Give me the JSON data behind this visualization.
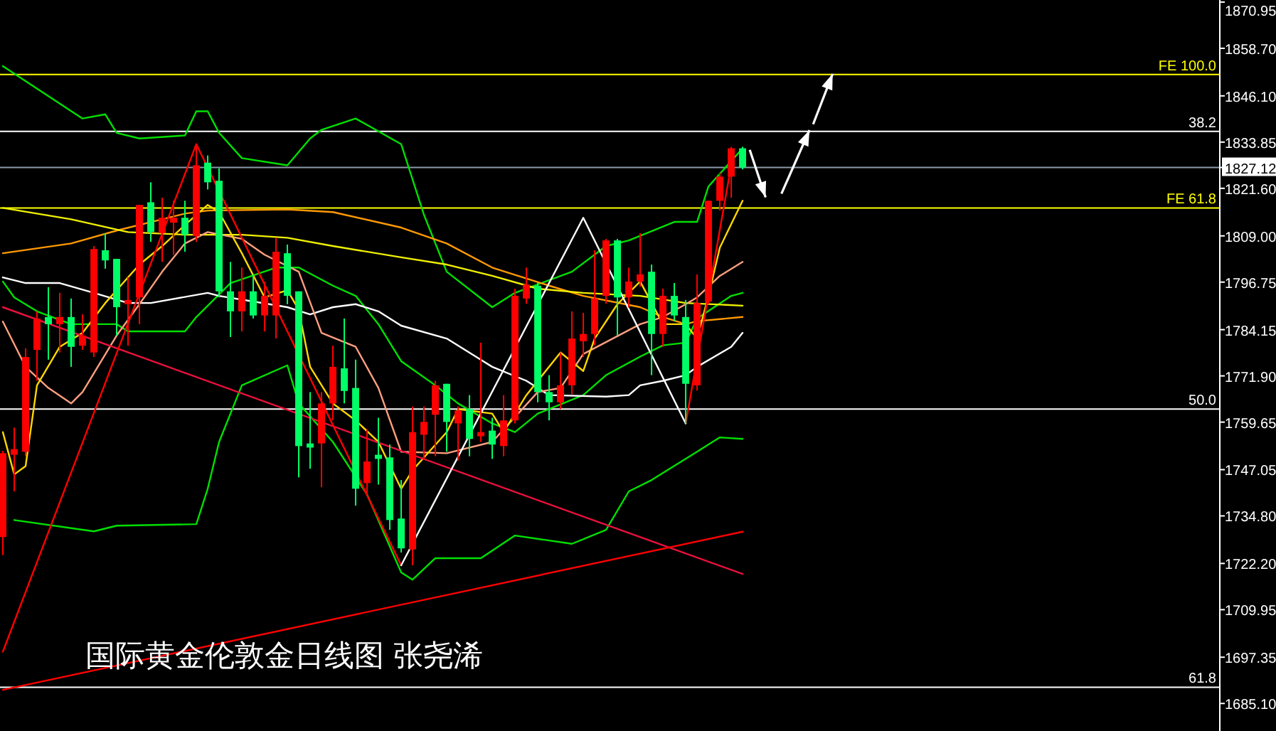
{
  "chart_data": {
    "type": "candlestick",
    "title": "国际黄金伦敦金日线图 张尧浠",
    "categories": [
      null,
      null,
      null,
      null,
      null,
      null,
      null,
      null,
      null,
      null,
      null,
      null,
      null,
      null,
      null,
      null,
      null,
      null,
      null,
      null,
      null,
      null,
      null,
      null,
      null,
      null,
      null,
      null,
      null,
      null,
      null,
      null,
      null,
      null,
      null,
      null,
      null,
      null,
      null,
      null,
      null,
      null,
      null,
      null,
      null,
      null,
      null,
      null,
      null,
      null,
      null,
      null,
      null,
      null,
      null,
      null,
      null,
      null,
      null,
      null,
      null,
      null,
      null,
      null,
      null,
      null
    ],
    "ohlc": [
      [
        1729.2,
        1752.0,
        1724.4,
        1751.4
      ],
      [
        1751.0,
        1758.2,
        1741.3,
        1752.5
      ],
      [
        1751.8,
        1779.2,
        1750.6,
        1776.9
      ],
      [
        1778.8,
        1789.0,
        1770.6,
        1787.1
      ],
      [
        1787.5,
        1795.4,
        1776.2,
        1785.6
      ],
      [
        1785.6,
        1793.9,
        1778.1,
        1787.5
      ],
      [
        1787.5,
        1792.4,
        1774.3,
        1779.6
      ],
      [
        1779.9,
        1788.2,
        1778.8,
        1782.6
      ],
      [
        1778.1,
        1806.3,
        1776.9,
        1805.5
      ],
      [
        1805.2,
        1809.7,
        1800.3,
        1802.5
      ],
      [
        1802.9,
        1802.9,
        1782.6,
        1790.1
      ],
      [
        1790.9,
        1798.0,
        1779.9,
        1792.0
      ],
      [
        1792.7,
        1817.2,
        1785.6,
        1817.2
      ],
      [
        1817.9,
        1823.2,
        1807.4,
        1810.0
      ],
      [
        1809.7,
        1819.1,
        1802.1,
        1813.8
      ],
      [
        1812.5,
        1818.3,
        1804.0,
        1813.8
      ],
      [
        1813.8,
        1818.3,
        1804.8,
        1809.3
      ],
      [
        1808.9,
        1833.3,
        1807.4,
        1827.7
      ],
      [
        1828.4,
        1830.3,
        1821.3,
        1823.2
      ],
      [
        1823.6,
        1826.9,
        1792.7,
        1794.3
      ],
      [
        1794.3,
        1802.1,
        1782.2,
        1789.0
      ],
      [
        1789.0,
        1800.6,
        1783.7,
        1794.3
      ],
      [
        1794.3,
        1798.8,
        1787.1,
        1787.9
      ],
      [
        1787.9,
        1796.9,
        1783.7,
        1793.1
      ],
      [
        1787.9,
        1808.5,
        1781.8,
        1804.8
      ],
      [
        1804.4,
        1806.7,
        1790.9,
        1793.1
      ],
      [
        1794.3,
        1794.3,
        1745.0,
        1753.3
      ],
      [
        1754.0,
        1767.6,
        1747.3,
        1752.9
      ],
      [
        1754.0,
        1767.6,
        1742.4,
        1764.6
      ],
      [
        1764.6,
        1779.9,
        1760.1,
        1774.3
      ],
      [
        1773.9,
        1787.1,
        1764.6,
        1767.9
      ],
      [
        1768.7,
        1776.2,
        1737.5,
        1742.0
      ],
      [
        1743.5,
        1757.8,
        1740.5,
        1749.2
      ],
      [
        1751.0,
        1760.8,
        1743.1,
        1749.9
      ],
      [
        1750.3,
        1753.7,
        1731.1,
        1733.7
      ],
      [
        1734.1,
        1744.3,
        1725.1,
        1726.2
      ],
      [
        1725.9,
        1763.8,
        1721.7,
        1757.0
      ],
      [
        1756.3,
        1763.8,
        1749.9,
        1759.7
      ],
      [
        1761.6,
        1770.6,
        1750.6,
        1769.4
      ],
      [
        1769.8,
        1769.8,
        1751.8,
        1759.7
      ],
      [
        1759.3,
        1763.8,
        1749.5,
        1762.7
      ],
      [
        1763.1,
        1766.8,
        1750.6,
        1755.2
      ],
      [
        1755.9,
        1780.7,
        1754.4,
        1757.0
      ],
      [
        1757.4,
        1760.8,
        1749.9,
        1753.7
      ],
      [
        1753.3,
        1766.8,
        1750.6,
        1760.1
      ],
      [
        1760.1,
        1795.0,
        1759.3,
        1793.1
      ],
      [
        1792.4,
        1800.6,
        1791.0,
        1796.1
      ],
      [
        1795.8,
        1796.5,
        1764.9,
        1767.6
      ],
      [
        1767.6,
        1772.1,
        1760.1,
        1764.9
      ],
      [
        1764.9,
        1778.1,
        1763.1,
        1769.4
      ],
      [
        1769.4,
        1789.0,
        1767.0,
        1781.8
      ],
      [
        1781.1,
        1788.6,
        1776.9,
        1783.0
      ],
      [
        1783.0,
        1805.2,
        1780.0,
        1792.4
      ],
      [
        1793.1,
        1808.2,
        1791.0,
        1807.8
      ],
      [
        1807.8,
        1808.2,
        1782.6,
        1792.7
      ],
      [
        1792.7,
        1800.6,
        1790.0,
        1796.9
      ],
      [
        1796.9,
        1809.7,
        1795.5,
        1798.8
      ],
      [
        1799.5,
        1801.4,
        1772.1,
        1783.0
      ],
      [
        1783.0,
        1795.0,
        1779.6,
        1793.1
      ],
      [
        1793.1,
        1796.5,
        1786.4,
        1787.9
      ],
      [
        1787.5,
        1792.0,
        1759.3,
        1769.8
      ],
      [
        1769.4,
        1798.8,
        1768.0,
        1791.2
      ],
      [
        1791.6,
        1818.3,
        1790.9,
        1818.3
      ],
      [
        1818.3,
        1825.8,
        1815.7,
        1824.7
      ],
      [
        1824.7,
        1832.6,
        1819.1,
        1832.2
      ],
      [
        1832.2,
        1832.6,
        1826.6,
        1827.1
      ]
    ],
    "colors": [
      "#ff0000",
      "#ff0000",
      "#ff0000",
      "#ff0000",
      "#00ff66",
      "#ff0000",
      "#00ff66",
      "#ff0000",
      "#ff0000",
      "#00ff66",
      "#00ff66",
      "#ff0000",
      "#ff0000",
      "#00ff66",
      "#ff0000",
      "#ff0000",
      "#00ff66",
      "#ff0000",
      "#00ff66",
      "#00ff66",
      "#00ff66",
      "#ff0000",
      "#00ff66",
      "#ff0000",
      "#ff0000",
      "#00ff66",
      "#00ff66",
      "#00ff66",
      "#ff0000",
      "#ff0000",
      "#00ff66",
      "#00ff66",
      "#ff0000",
      "#00ff66",
      "#00ff66",
      "#00ff66",
      "#ff0000",
      "#ff0000",
      "#ff0000",
      "#00ff66",
      "#ff0000",
      "#00ff66",
      "#ff0000",
      "#00ff66",
      "#ff0000",
      "#ff0000",
      "#ff0000",
      "#00ff66",
      "#00ff66",
      "#ff0000",
      "#ff0000",
      "#ff0000",
      "#ff0000",
      "#ff0000",
      "#00ff66",
      "#ff0000",
      "#ff0000",
      "#00ff66",
      "#ff0000",
      "#00ff66",
      "#00ff66",
      "#ff0000",
      "#ff0000",
      "#ff0000",
      "#ff0000",
      "#00ff66"
    ],
    "series": [
      {
        "type": "line",
        "color": "#00e000",
        "values": [
          1854.0,
          null,
          null,
          null,
          null,
          null,
          null,
          1840.1,
          null,
          1841.2,
          1836.3,
          null,
          1834.8,
          null,
          null,
          null,
          1835.6,
          1842.0,
          1842.0,
          1836.3,
          null,
          1829.6,
          null,
          null,
          null,
          1827.7,
          null,
          1834.8,
          1837.1,
          null,
          null,
          1840.1,
          null,
          null,
          null,
          1833.3,
          null,
          1814.6,
          null,
          1799.5,
          null,
          null,
          null,
          1790.1,
          null,
          1793.9,
          null,
          null,
          null,
          null,
          1799.5,
          null,
          null,
          1806.3,
          null,
          1807.8,
          null,
          null,
          null,
          1812.7,
          null,
          1812.7,
          1822.1,
          null,
          null,
          1832.2
        ]
      },
      {
        "type": "line",
        "color": "#00e000",
        "values": [
          1796.9,
          1792.7,
          null,
          1789.0,
          null,
          null,
          1785.6,
          null,
          null,
          null,
          1785.6,
          1783.7,
          null,
          null,
          null,
          null,
          1783.7,
          1787.5,
          null,
          null,
          1796.5,
          null,
          null,
          null,
          1800.6,
          null,
          1800.6,
          null,
          null,
          1795.8,
          null,
          1793.1,
          null,
          1785.6,
          null,
          1775.8,
          null,
          null,
          1769.4,
          null,
          1764.6,
          null,
          null,
          1759.3,
          null,
          1757.0,
          null,
          1761.9,
          null,
          null,
          null,
          1766.8,
          null,
          1772.1,
          null,
          null,
          1777.0,
          null,
          1780.0,
          null,
          1780.7,
          1787.1,
          null,
          null,
          1793.1,
          1793.9
        ]
      },
      {
        "type": "line",
        "color": "#00e000",
        "values": [
          null,
          1733.7,
          null,
          null,
          null,
          null,
          null,
          null,
          1730.7,
          null,
          1732.2,
          null,
          null,
          null,
          null,
          null,
          null,
          1732.6,
          1742.0,
          1754.4,
          null,
          1769.4,
          null,
          null,
          null,
          1774.7,
          1764.6,
          null,
          null,
          1754.4,
          null,
          null,
          1740.5,
          null,
          null,
          1719.8,
          1717.9,
          null,
          1723.6,
          null,
          null,
          null,
          1723.6,
          null,
          null,
          1729.6,
          null,
          null,
          null,
          null,
          1727.4,
          null,
          null,
          1731.1,
          null,
          1741.3,
          null,
          1744.3,
          null,
          null,
          null,
          1751.8,
          null,
          1755.6,
          null,
          1755.2
        ]
      },
      {
        "type": "line",
        "color": "#ffffff",
        "values": [
          1798.0,
          null,
          1796.5,
          null,
          null,
          1796.5,
          null,
          null,
          1793.9,
          null,
          null,
          1791.2,
          null,
          1791.2,
          null,
          null,
          null,
          null,
          1793.9,
          1793.1,
          null,
          null,
          1791.6,
          null,
          null,
          1790.1,
          null,
          1788.2,
          null,
          1790.1,
          null,
          1790.9,
          null,
          1789.0,
          null,
          1785.2,
          null,
          null,
          null,
          1781.8,
          null,
          null,
          null,
          1774.3,
          null,
          null,
          1770.6,
          null,
          1766.8,
          null,
          null,
          null,
          null,
          1766.4,
          null,
          1766.8,
          1769.4,
          null,
          1770.6,
          null,
          1772.1,
          1774.3,
          null,
          null,
          1779.6,
          1783.3
        ]
      },
      {
        "type": "line",
        "color": "#ff9900",
        "values": [
          1804.4,
          null,
          null,
          null,
          null,
          null,
          1807.0,
          null,
          null,
          null,
          1810.4,
          null,
          null,
          null,
          null,
          null,
          1814.9,
          null,
          1815.7,
          null,
          null,
          null,
          null,
          null,
          null,
          1816.0,
          null,
          null,
          null,
          1815.3,
          null,
          null,
          null,
          null,
          null,
          1811.2,
          null,
          null,
          null,
          1807.0,
          null,
          null,
          null,
          1800.6,
          null,
          null,
          null,
          null,
          1795.8,
          null,
          null,
          1793.1,
          null,
          null,
          null,
          null,
          1790.1,
          null,
          1787.5,
          null,
          1785.6,
          1786.4,
          null,
          null,
          null,
          1787.5
        ]
      },
      {
        "type": "line",
        "color": "#f0f000",
        "values": [
          1816.4,
          null,
          null,
          null,
          null,
          null,
          1813.4,
          null,
          null,
          null,
          null,
          1810.0,
          null,
          null,
          null,
          null,
          1809.3,
          null,
          null,
          null,
          null,
          1809.3,
          null,
          null,
          null,
          1808.5,
          null,
          null,
          null,
          1806.3,
          null,
          null,
          null,
          null,
          null,
          1803.3,
          null,
          null,
          null,
          1801.4,
          null,
          null,
          null,
          1798.4,
          null,
          null,
          null,
          1795.0,
          null,
          null,
          null,
          1793.9,
          null,
          null,
          null,
          null,
          1793.1,
          null,
          null,
          null,
          1791.2,
          null,
          null,
          null,
          null,
          1790.5
        ]
      },
      {
        "type": "line",
        "color": "#ff9f7f",
        "values": [
          1786.3,
          null,
          1774.3,
          null,
          1768.7,
          null,
          1764.6,
          1767.6,
          null,
          null,
          1782.6,
          null,
          1790.9,
          null,
          1799.5,
          null,
          1807.0,
          null,
          1810.0,
          null,
          null,
          1808.2,
          null,
          1804.0,
          null,
          null,
          1799.5,
          null,
          1783.3,
          null,
          null,
          1779.6,
          null,
          1768.7,
          null,
          1751.8,
          null,
          null,
          null,
          1751.4,
          null,
          null,
          null,
          1754.4,
          null,
          null,
          null,
          1767.6,
          null,
          1768.7,
          null,
          1777.7,
          null,
          null,
          null,
          null,
          1785.6,
          null,
          1787.5,
          null,
          1790.9,
          1792.7,
          null,
          1798.4,
          null,
          1802.1
        ]
      },
      {
        "type": "line",
        "color": "#ffd700",
        "values": [
          1757.0,
          1745.8,
          1748.0,
          1769.4,
          null,
          1779.6,
          null,
          1783.3,
          null,
          1791.2,
          null,
          null,
          1801.4,
          null,
          1806.3,
          null,
          1811.9,
          null,
          1817.2,
          1815.3,
          null,
          1804.4,
          null,
          1792.7,
          null,
          1794.6,
          1789.4,
          1774.3,
          null,
          1764.6,
          null,
          1760.1,
          null,
          1754.4,
          null,
          1742.0,
          1746.9,
          null,
          null,
          1757.0,
          1763.1,
          null,
          null,
          1761.9,
          1757.0,
          null,
          1766.8,
          null,
          null,
          1778.1,
          null,
          1773.2,
          1781.8,
          null,
          1790.9,
          null,
          1796.9,
          null,
          1785.6,
          null,
          1785.6,
          1781.8,
          1793.1,
          1805.9,
          null,
          1818.3
        ]
      },
      {
        "type": "line",
        "color": "#e8103c",
        "values": [
          1790.1,
          null,
          null,
          null,
          null,
          null,
          null,
          null,
          null,
          null,
          null,
          null,
          null,
          null,
          null,
          null,
          null,
          null,
          null,
          null,
          null,
          null,
          null,
          null,
          null,
          null,
          null,
          null,
          null,
          null,
          null,
          null,
          null,
          null,
          null,
          null,
          null,
          null,
          null,
          null,
          null,
          null,
          null,
          null,
          null,
          null,
          null,
          null,
          null,
          null,
          null,
          null,
          null,
          null,
          null,
          null,
          null,
          null,
          null,
          null,
          null,
          null,
          null,
          null,
          null,
          1719.4
        ]
      },
      {
        "type": "line",
        "color": "#ff0000",
        "values": [
          1688.7,
          null,
          null,
          null,
          null,
          null,
          null,
          null,
          null,
          null,
          null,
          null,
          null,
          null,
          null,
          null,
          null,
          null,
          null,
          null,
          null,
          null,
          null,
          null,
          null,
          null,
          null,
          null,
          null,
          null,
          null,
          null,
          null,
          null,
          null,
          null,
          null,
          null,
          null,
          null,
          null,
          null,
          null,
          null,
          null,
          null,
          null,
          null,
          null,
          null,
          null,
          null,
          null,
          null,
          null,
          null,
          null,
          null,
          null,
          null,
          null,
          null,
          null,
          null,
          null,
          1730.6
        ]
      },
      {
        "type": "line",
        "color": "#ff0000",
        "values": [
          1698.8,
          null,
          null,
          null,
          null,
          null,
          null,
          null,
          null,
          null,
          null,
          null,
          null,
          null,
          null,
          null,
          null,
          1833.3,
          null,
          null,
          null,
          null,
          null,
          null,
          null,
          null,
          null,
          null,
          null,
          null,
          null,
          null,
          null,
          null,
          null,
          1721.7,
          null,
          null,
          null,
          null,
          null,
          null,
          null,
          null,
          null,
          null,
          null,
          null,
          null,
          null,
          null,
          null,
          null,
          null,
          null,
          null,
          null,
          null,
          null,
          null,
          null,
          null,
          null,
          null,
          null,
          null
        ]
      },
      {
        "type": "line",
        "color": "#ff0000",
        "values": [
          null,
          null,
          null,
          null,
          null,
          null,
          null,
          null,
          null,
          null,
          null,
          null,
          null,
          null,
          null,
          null,
          null,
          null,
          null,
          null,
          null,
          null,
          null,
          null,
          null,
          null,
          null,
          null,
          null,
          null,
          null,
          null,
          null,
          null,
          null,
          null,
          null,
          null,
          null,
          null,
          null,
          null,
          null,
          null,
          null,
          null,
          null,
          null,
          null,
          null,
          null,
          null,
          null,
          null,
          null,
          null,
          null,
          null,
          null,
          null,
          1759.3,
          null,
          null,
          null,
          1827.7,
          null
        ]
      },
      {
        "type": "line",
        "color": "#ffffff",
        "values": [
          null,
          null,
          null,
          null,
          null,
          null,
          null,
          null,
          null,
          null,
          null,
          null,
          null,
          null,
          null,
          null,
          null,
          null,
          null,
          null,
          null,
          null,
          null,
          null,
          null,
          null,
          null,
          null,
          null,
          null,
          null,
          null,
          null,
          null,
          null,
          1721.7,
          null,
          null,
          null,
          null,
          null,
          null,
          null,
          null,
          null,
          null,
          null,
          null,
          null,
          null,
          null,
          1813.8,
          null,
          null,
          null,
          null,
          null,
          null,
          null,
          null,
          1759.3,
          null,
          null,
          null,
          null,
          null
        ]
      }
    ],
    "ref_lines": [
      {
        "axis": "y",
        "value": 1851.75,
        "label": "FE 100.0",
        "color": "#ffff00"
      },
      {
        "axis": "y",
        "value": 1836.7,
        "color": "#ffffff"
      },
      {
        "axis": "y",
        "value": 1827.12,
        "color": "#8c9aa8"
      },
      {
        "axis": "y",
        "value": 1816.4,
        "label": "FE 61.8",
        "color": "#ffff00"
      },
      {
        "axis": "y",
        "value": 1763.1,
        "color": "#ffffff"
      },
      {
        "axis": "y",
        "value": 1689.4,
        "color": "#ffffff"
      }
    ],
    "annotations": [
      {
        "text": "38.2",
        "y": 1836.7
      },
      {
        "text": "50.0",
        "y": 1763.1
      },
      {
        "text": "61.8",
        "y": 1689.4
      }
    ],
    "ylim": [
      1677.8,
      1871.5
    ],
    "yticks": [
      {
        "value": 1685.1,
        "label": "1685.10"
      },
      1697.35,
      1709.95,
      {
        "value": 1722.2,
        "label": "1722.20"
      },
      {
        "value": 1734.8,
        "label": "1734.80"
      },
      1747.05,
      1759.65,
      {
        "value": 1771.9,
        "label": "1771.90"
      },
      1784.15,
      1796.75,
      {
        "value": 1809.0,
        "label": "1809.00"
      },
      {
        "value": 1821.6,
        "label": "1821.60"
      },
      {
        "value": 1827.12,
        "label": "1827.12"
      },
      1833.85,
      {
        "value": 1846.1,
        "label": "1846.10"
      },
      {
        "value": 1858.7,
        "label": "1858.70"
      },
      1870.95
    ],
    "tick_labels": "y",
    "grid": false
  }
}
